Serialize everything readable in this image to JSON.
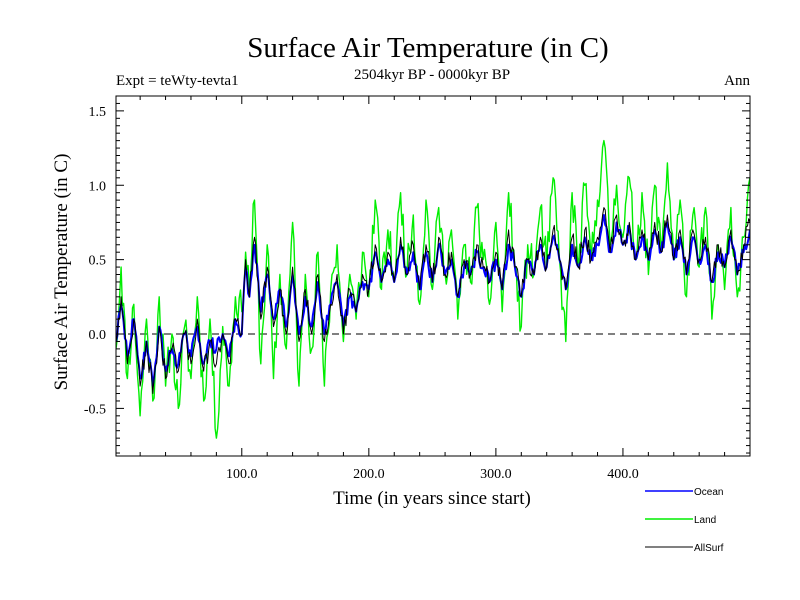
{
  "chart_data": {
    "type": "line",
    "title": "Surface Air Temperature (in C)",
    "subtitle": "2504kyr BP - 0000kyr BP",
    "experiment_label": "Expt = teWty-tevta1",
    "season_label": "Ann",
    "xlabel": "Time (in years since start)",
    "ylabel": "Surface Air Temperature (in C)",
    "xlim": [
      1,
      500
    ],
    "ylim": [
      -0.82,
      1.6
    ],
    "x_ticks": [
      100,
      200,
      300,
      400
    ],
    "x_tick_labels": [
      "100.0",
      "200.0",
      "300.0",
      "400.0"
    ],
    "y_ticks": [
      -0.5,
      0.0,
      0.5,
      1.0,
      1.5
    ],
    "y_tick_labels": [
      "-0.5",
      "0.0",
      "0.5",
      "1.0",
      "1.5"
    ],
    "reference_line": 0.0,
    "legend_position": "bottom-right",
    "series": [
      {
        "name": "Land",
        "color": "#00ee00",
        "anchors": [
          [
            1,
            -0.1
          ],
          [
            5,
            0.45
          ],
          [
            10,
            -0.3
          ],
          [
            15,
            0.2
          ],
          [
            20,
            -0.55
          ],
          [
            25,
            0.1
          ],
          [
            30,
            -0.45
          ],
          [
            35,
            0.25
          ],
          [
            40,
            -0.35
          ],
          [
            45,
            0.0
          ],
          [
            50,
            -0.5
          ],
          [
            55,
            0.05
          ],
          [
            60,
            -0.3
          ],
          [
            65,
            0.25
          ],
          [
            70,
            -0.45
          ],
          [
            75,
            0.1
          ],
          [
            80,
            -0.7
          ],
          [
            85,
            0.05
          ],
          [
            90,
            -0.35
          ],
          [
            95,
            0.25
          ],
          [
            100,
            0.15
          ],
          [
            103,
            0.55
          ],
          [
            106,
            0.3
          ],
          [
            110,
            0.9
          ],
          [
            115,
            -0.2
          ],
          [
            120,
            0.6
          ],
          [
            125,
            -0.3
          ],
          [
            130,
            0.4
          ],
          [
            135,
            -0.1
          ],
          [
            140,
            0.75
          ],
          [
            145,
            -0.35
          ],
          [
            150,
            0.4
          ],
          [
            155,
            -0.1
          ],
          [
            160,
            0.55
          ],
          [
            165,
            -0.35
          ],
          [
            170,
            0.3
          ],
          [
            175,
            0.6
          ],
          [
            180,
            -0.05
          ],
          [
            185,
            0.4
          ],
          [
            190,
            0.1
          ],
          [
            195,
            0.55
          ],
          [
            200,
            0.25
          ],
          [
            205,
            0.9
          ],
          [
            210,
            0.3
          ],
          [
            215,
            0.7
          ],
          [
            220,
            0.35
          ],
          [
            225,
            0.95
          ],
          [
            230,
            0.4
          ],
          [
            235,
            0.8
          ],
          [
            240,
            0.2
          ],
          [
            245,
            0.9
          ],
          [
            250,
            0.3
          ],
          [
            255,
            0.85
          ],
          [
            260,
            0.4
          ],
          [
            265,
            0.7
          ],
          [
            270,
            0.1
          ],
          [
            275,
            0.6
          ],
          [
            280,
            0.35
          ],
          [
            285,
            0.85
          ],
          [
            290,
            0.5
          ],
          [
            295,
            0.2
          ],
          [
            300,
            0.75
          ],
          [
            305,
            0.15
          ],
          [
            310,
            0.95
          ],
          [
            315,
            0.45
          ],
          [
            320,
            0.05
          ],
          [
            325,
            0.6
          ],
          [
            330,
            0.4
          ],
          [
            335,
            0.85
          ],
          [
            340,
            0.45
          ],
          [
            345,
            1.05
          ],
          [
            350,
            0.5
          ],
          [
            355,
            -0.05
          ],
          [
            360,
            0.95
          ],
          [
            365,
            0.45
          ],
          [
            370,
            1.0
          ],
          [
            375,
            0.5
          ],
          [
            380,
            0.9
          ],
          [
            385,
            1.3
          ],
          [
            390,
            0.6
          ],
          [
            395,
            1.0
          ],
          [
            400,
            0.65
          ],
          [
            405,
            1.05
          ],
          [
            410,
            0.5
          ],
          [
            415,
            0.95
          ],
          [
            420,
            0.4
          ],
          [
            425,
            1.0
          ],
          [
            430,
            0.55
          ],
          [
            435,
            1.15
          ],
          [
            440,
            0.5
          ],
          [
            445,
            0.9
          ],
          [
            450,
            0.25
          ],
          [
            455,
            0.8
          ],
          [
            460,
            0.45
          ],
          [
            465,
            0.85
          ],
          [
            470,
            0.1
          ],
          [
            475,
            0.6
          ],
          [
            480,
            0.3
          ],
          [
            485,
            0.85
          ],
          [
            490,
            0.25
          ],
          [
            495,
            0.65
          ],
          [
            500,
            1.05
          ]
        ]
      },
      {
        "name": "Ocean",
        "color": "#0000ff",
        "anchors": [
          [
            1,
            -0.05
          ],
          [
            5,
            0.2
          ],
          [
            10,
            -0.15
          ],
          [
            15,
            0.1
          ],
          [
            20,
            -0.3
          ],
          [
            25,
            -0.05
          ],
          [
            30,
            -0.35
          ],
          [
            35,
            0.05
          ],
          [
            40,
            -0.25
          ],
          [
            45,
            -0.1
          ],
          [
            50,
            -0.2
          ],
          [
            55,
            0.0
          ],
          [
            60,
            -0.15
          ],
          [
            65,
            0.05
          ],
          [
            70,
            -0.2
          ],
          [
            75,
            -0.05
          ],
          [
            80,
            -0.1
          ],
          [
            85,
            0.0
          ],
          [
            90,
            -0.15
          ],
          [
            95,
            0.1
          ],
          [
            100,
            0.0
          ],
          [
            103,
            0.45
          ],
          [
            106,
            0.25
          ],
          [
            110,
            0.6
          ],
          [
            115,
            0.15
          ],
          [
            120,
            0.4
          ],
          [
            125,
            0.1
          ],
          [
            130,
            0.3
          ],
          [
            135,
            0.05
          ],
          [
            140,
            0.4
          ],
          [
            145,
            0.0
          ],
          [
            150,
            0.25
          ],
          [
            155,
            0.05
          ],
          [
            160,
            0.35
          ],
          [
            165,
            0.0
          ],
          [
            170,
            0.2
          ],
          [
            175,
            0.35
          ],
          [
            180,
            0.05
          ],
          [
            185,
            0.25
          ],
          [
            190,
            0.15
          ],
          [
            195,
            0.35
          ],
          [
            200,
            0.3
          ],
          [
            205,
            0.55
          ],
          [
            210,
            0.35
          ],
          [
            215,
            0.5
          ],
          [
            220,
            0.35
          ],
          [
            225,
            0.6
          ],
          [
            230,
            0.4
          ],
          [
            235,
            0.55
          ],
          [
            240,
            0.3
          ],
          [
            245,
            0.55
          ],
          [
            250,
            0.35
          ],
          [
            255,
            0.6
          ],
          [
            260,
            0.4
          ],
          [
            265,
            0.5
          ],
          [
            270,
            0.25
          ],
          [
            275,
            0.45
          ],
          [
            280,
            0.4
          ],
          [
            285,
            0.55
          ],
          [
            290,
            0.45
          ],
          [
            295,
            0.35
          ],
          [
            300,
            0.5
          ],
          [
            305,
            0.3
          ],
          [
            310,
            0.6
          ],
          [
            315,
            0.45
          ],
          [
            320,
            0.25
          ],
          [
            325,
            0.5
          ],
          [
            330,
            0.4
          ],
          [
            335,
            0.6
          ],
          [
            340,
            0.45
          ],
          [
            345,
            0.65
          ],
          [
            350,
            0.5
          ],
          [
            355,
            0.3
          ],
          [
            360,
            0.6
          ],
          [
            365,
            0.45
          ],
          [
            370,
            0.65
          ],
          [
            375,
            0.5
          ],
          [
            380,
            0.6
          ],
          [
            385,
            0.8
          ],
          [
            390,
            0.55
          ],
          [
            395,
            0.75
          ],
          [
            400,
            0.6
          ],
          [
            405,
            0.7
          ],
          [
            410,
            0.5
          ],
          [
            415,
            0.65
          ],
          [
            420,
            0.5
          ],
          [
            425,
            0.7
          ],
          [
            430,
            0.55
          ],
          [
            435,
            0.75
          ],
          [
            440,
            0.5
          ],
          [
            445,
            0.65
          ],
          [
            450,
            0.4
          ],
          [
            455,
            0.65
          ],
          [
            460,
            0.5
          ],
          [
            465,
            0.6
          ],
          [
            470,
            0.35
          ],
          [
            475,
            0.55
          ],
          [
            480,
            0.45
          ],
          [
            485,
            0.65
          ],
          [
            490,
            0.4
          ],
          [
            495,
            0.55
          ],
          [
            500,
            0.7
          ]
        ]
      },
      {
        "name": "AllSurf",
        "color": "#000000",
        "anchors": [
          [
            1,
            -0.05
          ],
          [
            5,
            0.25
          ],
          [
            10,
            -0.2
          ],
          [
            15,
            0.1
          ],
          [
            20,
            -0.35
          ],
          [
            25,
            -0.05
          ],
          [
            30,
            -0.4
          ],
          [
            35,
            0.05
          ],
          [
            40,
            -0.3
          ],
          [
            45,
            -0.1
          ],
          [
            50,
            -0.25
          ],
          [
            55,
            0.0
          ],
          [
            60,
            -0.2
          ],
          [
            65,
            0.1
          ],
          [
            70,
            -0.25
          ],
          [
            75,
            -0.05
          ],
          [
            80,
            -0.2
          ],
          [
            85,
            0.0
          ],
          [
            90,
            -0.2
          ],
          [
            95,
            0.1
          ],
          [
            100,
            0.0
          ],
          [
            103,
            0.5
          ],
          [
            106,
            0.25
          ],
          [
            110,
            0.65
          ],
          [
            115,
            0.1
          ],
          [
            120,
            0.45
          ],
          [
            125,
            0.05
          ],
          [
            130,
            0.3
          ],
          [
            135,
            0.0
          ],
          [
            140,
            0.45
          ],
          [
            145,
            -0.05
          ],
          [
            150,
            0.3
          ],
          [
            155,
            0.0
          ],
          [
            160,
            0.4
          ],
          [
            165,
            -0.05
          ],
          [
            170,
            0.2
          ],
          [
            175,
            0.4
          ],
          [
            180,
            0.0
          ],
          [
            185,
            0.3
          ],
          [
            190,
            0.15
          ],
          [
            195,
            0.4
          ],
          [
            200,
            0.3
          ],
          [
            205,
            0.6
          ],
          [
            210,
            0.35
          ],
          [
            215,
            0.55
          ],
          [
            220,
            0.35
          ],
          [
            225,
            0.65
          ],
          [
            230,
            0.4
          ],
          [
            235,
            0.6
          ],
          [
            240,
            0.3
          ],
          [
            245,
            0.6
          ],
          [
            250,
            0.35
          ],
          [
            255,
            0.65
          ],
          [
            260,
            0.4
          ],
          [
            265,
            0.55
          ],
          [
            270,
            0.25
          ],
          [
            275,
            0.5
          ],
          [
            280,
            0.4
          ],
          [
            285,
            0.6
          ],
          [
            290,
            0.45
          ],
          [
            295,
            0.35
          ],
          [
            300,
            0.55
          ],
          [
            305,
            0.3
          ],
          [
            310,
            0.7
          ],
          [
            315,
            0.45
          ],
          [
            320,
            0.25
          ],
          [
            325,
            0.5
          ],
          [
            330,
            0.4
          ],
          [
            335,
            0.65
          ],
          [
            340,
            0.45
          ],
          [
            345,
            0.7
          ],
          [
            350,
            0.5
          ],
          [
            355,
            0.3
          ],
          [
            360,
            0.65
          ],
          [
            365,
            0.45
          ],
          [
            370,
            0.7
          ],
          [
            375,
            0.5
          ],
          [
            380,
            0.65
          ],
          [
            385,
            0.85
          ],
          [
            390,
            0.55
          ],
          [
            395,
            0.8
          ],
          [
            400,
            0.6
          ],
          [
            405,
            0.75
          ],
          [
            410,
            0.5
          ],
          [
            415,
            0.7
          ],
          [
            420,
            0.5
          ],
          [
            425,
            0.75
          ],
          [
            430,
            0.55
          ],
          [
            435,
            0.8
          ],
          [
            440,
            0.5
          ],
          [
            445,
            0.7
          ],
          [
            450,
            0.4
          ],
          [
            455,
            0.7
          ],
          [
            460,
            0.5
          ],
          [
            465,
            0.65
          ],
          [
            470,
            0.35
          ],
          [
            475,
            0.6
          ],
          [
            480,
            0.45
          ],
          [
            485,
            0.7
          ],
          [
            490,
            0.4
          ],
          [
            495,
            0.6
          ],
          [
            500,
            0.75
          ]
        ]
      }
    ],
    "legend_order": [
      "Ocean",
      "Land",
      "AllSurf"
    ]
  }
}
